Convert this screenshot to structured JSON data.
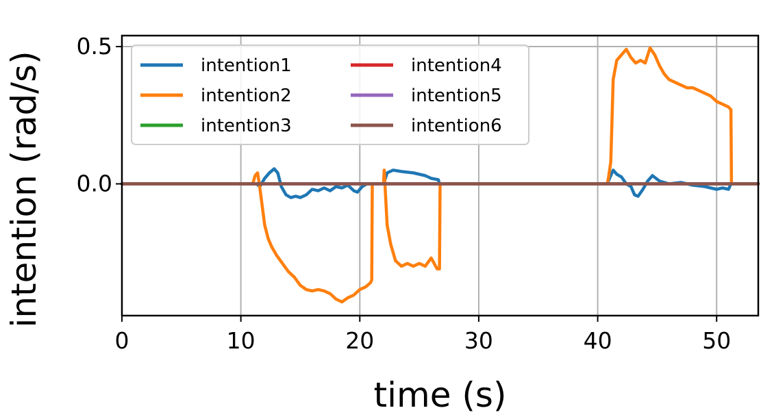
{
  "chart_data": {
    "type": "line",
    "xlabel": "time (s)",
    "ylabel": "intention (rad/s)",
    "xlim": [
      0,
      53.5
    ],
    "ylim": [
      -0.48,
      0.54
    ],
    "xticks": [
      0,
      10,
      20,
      30,
      40,
      50
    ],
    "xtick_labels": [
      "0",
      "10",
      "20",
      "30",
      "40",
      "50"
    ],
    "yticks": [
      0.0,
      0.5
    ],
    "ytick_labels": [
      "0.0",
      "0.5"
    ],
    "grid": true,
    "legend": {
      "placement": "upper-left",
      "columns": 2
    },
    "series": [
      {
        "name": "intention1",
        "color": "#1f77b4",
        "x": [
          0,
          11.3,
          11.6,
          12.0,
          12.4,
          12.8,
          13.1,
          13.4,
          13.8,
          14.2,
          14.6,
          15.0,
          15.5,
          16.0,
          16.5,
          17.0,
          17.5,
          18.0,
          18.5,
          19.0,
          19.5,
          19.8,
          20.2,
          20.6,
          21.0,
          21.2,
          22.0,
          22.3,
          22.8,
          23.5,
          24.5,
          25.5,
          26.0,
          26.6,
          26.7,
          40.8,
          41.0,
          41.3,
          41.6,
          42.0,
          42.4,
          42.8,
          43.1,
          43.4,
          43.8,
          44.2,
          44.6,
          45.2,
          46.0,
          47.0,
          48.0,
          49.0,
          50.0,
          50.5,
          51.0,
          51.2,
          53.5
        ],
        "y": [
          0,
          0.0,
          -0.01,
          0.02,
          0.04,
          0.055,
          0.04,
          -0.01,
          -0.04,
          -0.05,
          -0.045,
          -0.05,
          -0.04,
          -0.02,
          -0.025,
          -0.015,
          -0.025,
          -0.01,
          -0.015,
          -0.005,
          -0.025,
          -0.03,
          -0.01,
          0.0,
          0.0,
          0.0,
          0.0,
          0.04,
          0.05,
          0.045,
          0.04,
          0.03,
          0.02,
          0.015,
          0.0,
          0.0,
          0.02,
          0.05,
          0.035,
          0.025,
          0.0,
          -0.01,
          -0.04,
          -0.045,
          -0.02,
          0.01,
          0.03,
          0.01,
          0.0,
          0.005,
          -0.005,
          -0.01,
          -0.02,
          -0.015,
          -0.02,
          0.0,
          0.0
        ]
      },
      {
        "name": "intention2",
        "color": "#ff7f0e",
        "x": [
          0,
          11.0,
          11.2,
          11.4,
          11.55,
          11.7,
          12.0,
          12.3,
          12.6,
          13.0,
          13.5,
          14.0,
          14.5,
          15.0,
          15.5,
          16.0,
          16.5,
          17.0,
          17.5,
          18.0,
          18.5,
          19.0,
          19.5,
          20.0,
          20.5,
          20.9,
          21.0,
          21.05,
          22.0,
          22.05,
          22.3,
          22.6,
          23.0,
          23.5,
          24.0,
          24.5,
          25.0,
          25.5,
          26.0,
          26.5,
          26.7,
          26.75,
          40.8,
          40.9,
          41.1,
          41.3,
          41.6,
          42.0,
          42.4,
          42.8,
          43.2,
          43.6,
          44.0,
          44.4,
          44.8,
          45.2,
          45.6,
          46.0,
          46.5,
          47.0,
          47.5,
          48.0,
          48.5,
          49.0,
          49.5,
          50.0,
          50.5,
          51.0,
          51.2,
          51.25,
          53.5
        ],
        "y": [
          0,
          0.0,
          0.03,
          0.04,
          0.0,
          -0.05,
          -0.15,
          -0.2,
          -0.23,
          -0.26,
          -0.29,
          -0.32,
          -0.34,
          -0.37,
          -0.385,
          -0.39,
          -0.385,
          -0.39,
          -0.4,
          -0.42,
          -0.43,
          -0.415,
          -0.405,
          -0.385,
          -0.375,
          -0.36,
          -0.35,
          0.0,
          0.0,
          0.05,
          -0.15,
          -0.22,
          -0.28,
          -0.3,
          -0.29,
          -0.3,
          -0.29,
          -0.3,
          -0.27,
          -0.31,
          -0.31,
          0.0,
          0.0,
          0.02,
          0.08,
          0.38,
          0.45,
          0.47,
          0.49,
          0.46,
          0.44,
          0.45,
          0.44,
          0.495,
          0.47,
          0.43,
          0.4,
          0.38,
          0.37,
          0.36,
          0.35,
          0.35,
          0.34,
          0.33,
          0.32,
          0.3,
          0.29,
          0.28,
          0.27,
          0.0,
          0.0
        ]
      },
      {
        "name": "intention3",
        "color": "#2ca02c",
        "x": [
          0,
          53.5
        ],
        "y": [
          0,
          0
        ]
      },
      {
        "name": "intention4",
        "color": "#d62728",
        "x": [
          0,
          53.5
        ],
        "y": [
          0,
          0
        ]
      },
      {
        "name": "intention5",
        "color": "#9467bd",
        "x": [
          0,
          53.5
        ],
        "y": [
          0,
          0
        ]
      },
      {
        "name": "intention6",
        "color": "#8c564b",
        "x": [
          0,
          53.5
        ],
        "y": [
          0,
          0
        ]
      }
    ]
  }
}
